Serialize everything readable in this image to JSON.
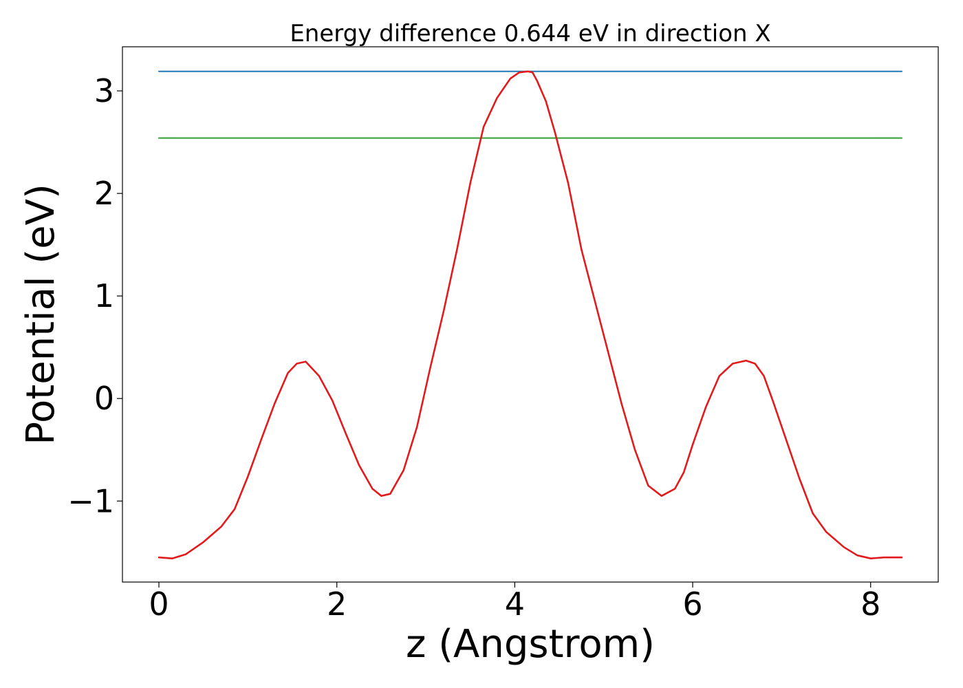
{
  "chart_data": {
    "type": "line",
    "title": "Energy difference 0.644 eV in direction X",
    "xlabel": "z (Angstrom)",
    "ylabel": "Potential (eV)",
    "xlim": [
      -0.41,
      8.76
    ],
    "ylim": [
      -1.79,
      3.43
    ],
    "xticks": [
      0,
      2,
      4,
      6,
      8
    ],
    "xtick_labels": [
      "0",
      "2",
      "4",
      "6",
      "8"
    ],
    "yticks": [
      -1,
      0,
      1,
      2,
      3
    ],
    "ytick_labels": [
      "−1",
      "0",
      "1",
      "2",
      "3"
    ],
    "grid": false,
    "series": [
      {
        "color": "#1f77b4",
        "style": "hline",
        "x": [
          0,
          8.35
        ],
        "y": [
          3.19,
          3.19
        ]
      },
      {
        "color": "#2ca02c",
        "style": "hline",
        "x": [
          0,
          8.35
        ],
        "y": [
          2.54,
          2.54
        ]
      },
      {
        "color": "#e31a1c",
        "style": "line",
        "x": [
          0,
          0.15,
          0.3,
          0.5,
          0.7,
          0.85,
          1.0,
          1.15,
          1.3,
          1.45,
          1.55,
          1.65,
          1.8,
          1.95,
          2.1,
          2.25,
          2.4,
          2.5,
          2.6,
          2.75,
          2.9,
          3.05,
          3.2,
          3.35,
          3.5,
          3.65,
          3.8,
          3.95,
          4.05,
          4.15,
          4.2,
          4.25,
          4.35,
          4.45,
          4.6,
          4.75,
          4.9,
          5.05,
          5.2,
          5.35,
          5.5,
          5.65,
          5.8,
          5.9,
          6.0,
          6.15,
          6.3,
          6.45,
          6.6,
          6.7,
          6.8,
          6.9,
          7.05,
          7.2,
          7.35,
          7.5,
          7.7,
          7.85,
          8.0,
          8.15,
          8.25,
          8.35
        ],
        "y": [
          -1.55,
          -1.56,
          -1.52,
          -1.4,
          -1.25,
          -1.08,
          -0.76,
          -0.4,
          -0.05,
          0.25,
          0.34,
          0.36,
          0.22,
          -0.02,
          -0.34,
          -0.65,
          -0.88,
          -0.95,
          -0.93,
          -0.7,
          -0.28,
          0.3,
          0.85,
          1.45,
          2.1,
          2.65,
          2.93,
          3.12,
          3.18,
          3.19,
          3.18,
          3.1,
          2.9,
          2.6,
          2.1,
          1.45,
          0.95,
          0.45,
          -0.05,
          -0.5,
          -0.85,
          -0.95,
          -0.88,
          -0.72,
          -0.45,
          -0.08,
          0.22,
          0.34,
          0.37,
          0.34,
          0.22,
          -0.02,
          -0.4,
          -0.78,
          -1.12,
          -1.3,
          -1.45,
          -1.53,
          -1.56,
          -1.55,
          -1.55,
          -1.55
        ]
      }
    ]
  }
}
